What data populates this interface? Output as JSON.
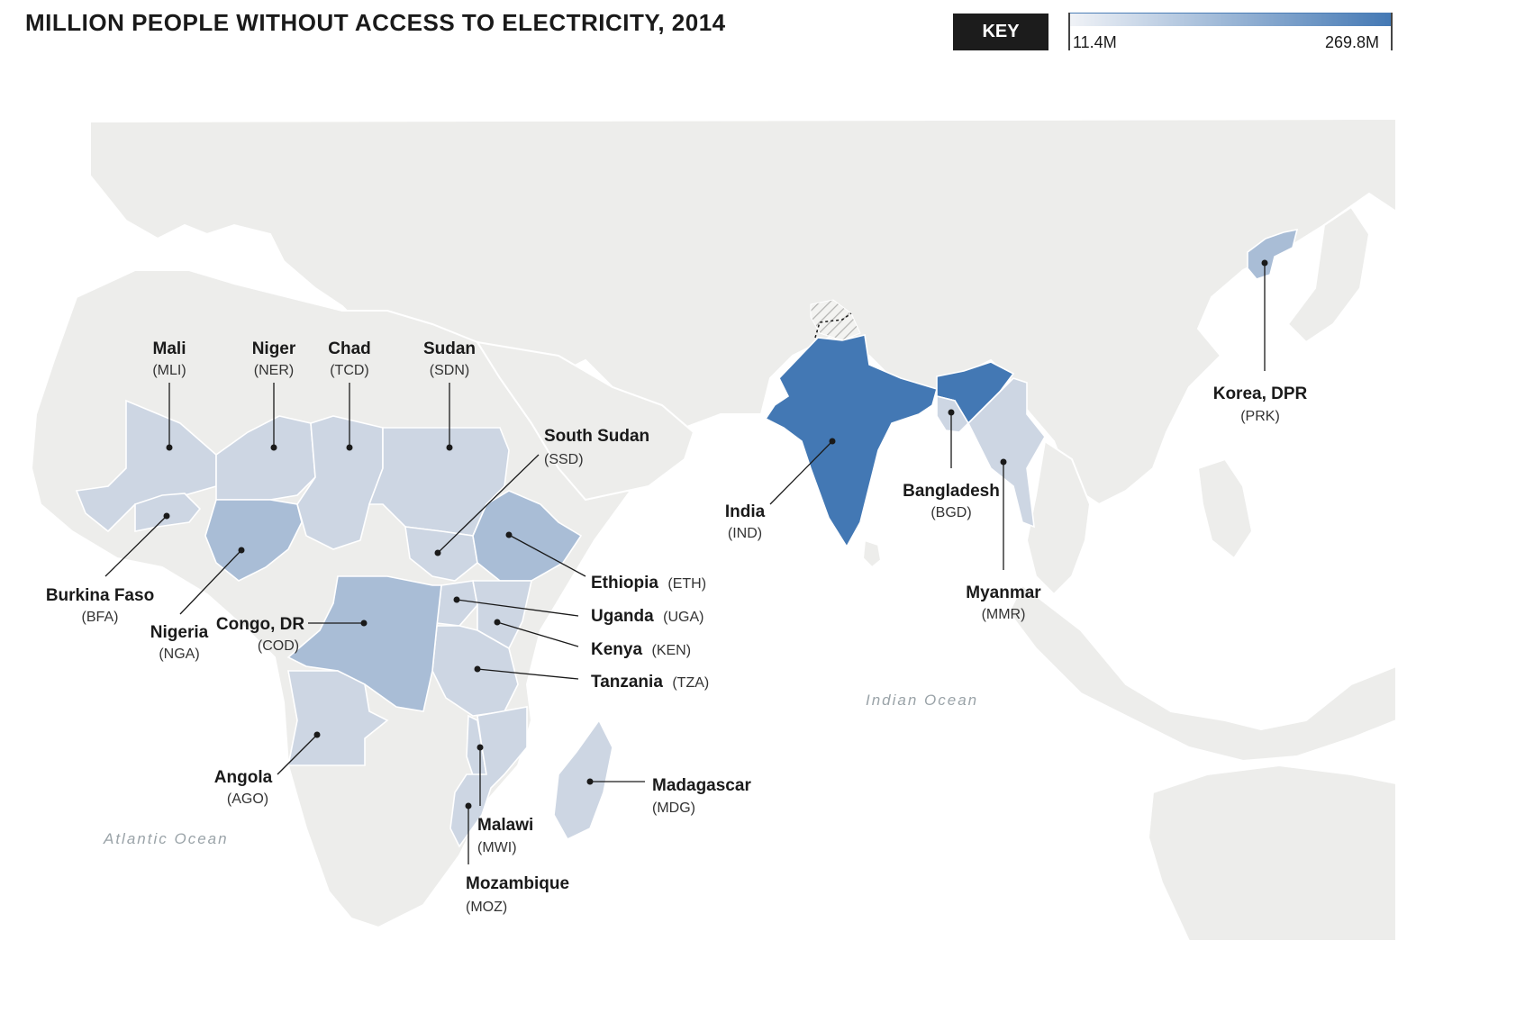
{
  "title": "MILLION PEOPLE WITHOUT ACCESS TO ELECTRICITY, 2014",
  "key": {
    "label": "KEY",
    "min_label": "11.4M",
    "max_label": "269.8M",
    "color_low": "#f1f3f7",
    "color_high": "#4378b4"
  },
  "oceans": {
    "indian": "Indian Ocean",
    "atlantic": "Atlantic Ocean"
  },
  "countries": [
    {
      "id": "mli",
      "name": "Mali",
      "code": "(MLI)"
    },
    {
      "id": "ner",
      "name": "Niger",
      "code": "(NER)"
    },
    {
      "id": "tcd",
      "name": "Chad",
      "code": "(TCD)"
    },
    {
      "id": "sdn",
      "name": "Sudan",
      "code": "(SDN)"
    },
    {
      "id": "ssd",
      "name": "South Sudan",
      "code": "(SSD)"
    },
    {
      "id": "bfa",
      "name": "Burkina Faso",
      "code": "(BFA)"
    },
    {
      "id": "nga",
      "name": "Nigeria",
      "code": "(NGA)"
    },
    {
      "id": "cod",
      "name": "Congo, DR",
      "code": "(COD)"
    },
    {
      "id": "eth",
      "name": "Ethiopia",
      "code": "(ETH)"
    },
    {
      "id": "uga",
      "name": "Uganda",
      "code": "(UGA)"
    },
    {
      "id": "ken",
      "name": "Kenya",
      "code": "(KEN)"
    },
    {
      "id": "tza",
      "name": "Tanzania",
      "code": "(TZA)"
    },
    {
      "id": "ago",
      "name": "Angola",
      "code": "(AGO)"
    },
    {
      "id": "mwi",
      "name": "Malawi",
      "code": "(MWI)"
    },
    {
      "id": "moz",
      "name": "Mozambique",
      "code": "(MOZ)"
    },
    {
      "id": "mdg",
      "name": "Madagascar",
      "code": "(MDG)"
    },
    {
      "id": "ind",
      "name": "India",
      "code": "(IND)"
    },
    {
      "id": "bgd",
      "name": "Bangladesh",
      "code": "(BGD)"
    },
    {
      "id": "mmr",
      "name": "Myanmar",
      "code": "(MMR)"
    },
    {
      "id": "prk",
      "name": "Korea, DPR",
      "code": "(PRK)"
    }
  ]
}
